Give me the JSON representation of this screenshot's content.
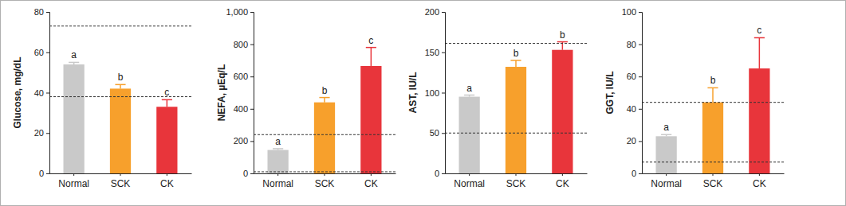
{
  "chart_data": [
    {
      "type": "bar",
      "y_label": "Glucose, mg/dL",
      "categories": [
        "Normal",
        "SCK",
        "CK"
      ],
      "values": [
        54,
        42,
        33
      ],
      "errors": [
        1,
        2,
        3.5
      ],
      "letters": [
        "a",
        "b",
        "c"
      ],
      "colors": [
        "#c9c9c9",
        "#f7a02c",
        "#e8353b"
      ],
      "reference_lines": [
        73,
        38
      ],
      "ylim": [
        0,
        80
      ],
      "yticks": [
        0,
        20,
        40,
        60,
        80
      ]
    },
    {
      "type": "bar",
      "y_label": "NEFA, µEq/L",
      "categories": [
        "Normal",
        "SCK",
        "CK"
      ],
      "values": [
        145,
        440,
        665
      ],
      "errors": [
        8,
        30,
        115
      ],
      "letters": [
        "a",
        "b",
        "c"
      ],
      "colors": [
        "#c9c9c9",
        "#f7a02c",
        "#e8353b"
      ],
      "reference_lines": [
        240,
        10
      ],
      "ylim": [
        0,
        1000
      ],
      "yticks": [
        0,
        200,
        400,
        600,
        800,
        {
          "value": 1000,
          "label": "1,000"
        }
      ]
    },
    {
      "type": "bar",
      "y_label": "AST, IU/L",
      "categories": [
        "Normal",
        "SCK",
        "CK"
      ],
      "values": [
        95,
        132,
        153
      ],
      "errors": [
        2,
        8,
        10
      ],
      "letters": [
        "a",
        "b",
        "b"
      ],
      "colors": [
        "#c9c9c9",
        "#f7a02c",
        "#e8353b"
      ],
      "reference_lines": [
        161,
        50
      ],
      "ylim": [
        0,
        200
      ],
      "yticks": [
        0,
        50,
        100,
        150,
        200
      ]
    },
    {
      "type": "bar",
      "y_label": "GGT, IU/L",
      "categories": [
        "Normal",
        "SCK",
        "CK"
      ],
      "values": [
        23,
        44,
        65
      ],
      "errors": [
        1,
        9,
        19
      ],
      "letters": [
        "a",
        "b",
        "c"
      ],
      "colors": [
        "#c9c9c9",
        "#f7a02c",
        "#e8353b"
      ],
      "reference_lines": [
        44,
        7
      ],
      "ylim": [
        0,
        100
      ],
      "yticks": [
        0,
        20,
        40,
        60,
        80,
        100
      ]
    }
  ]
}
